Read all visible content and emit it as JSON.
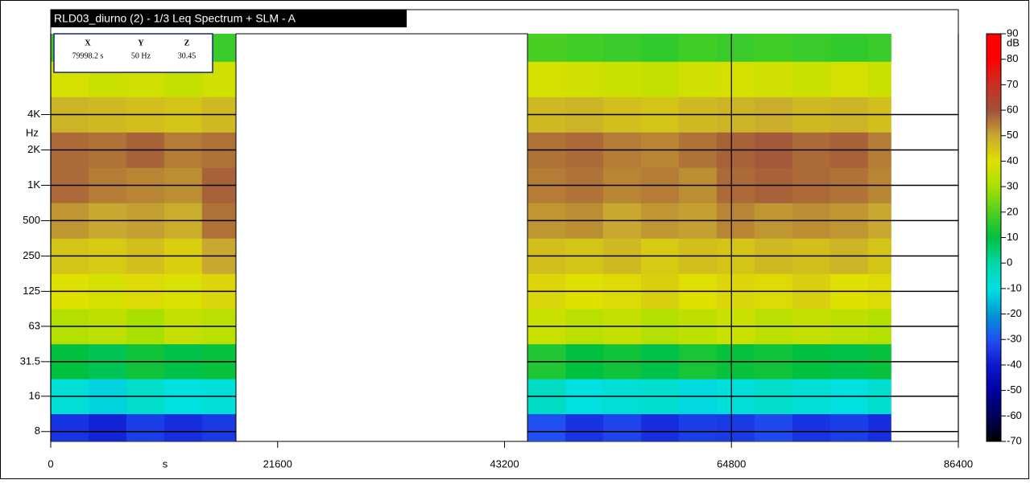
{
  "window_title": "RLD03_diurno (2) - 1/3 Leq Spectrum + SLM - A",
  "readout": {
    "headers": [
      "X",
      "Y",
      "Z"
    ],
    "values": [
      "79998.2 s",
      "50 Hz",
      "30.45"
    ]
  },
  "chart_data": {
    "type": "heatmap",
    "x_label": "s",
    "y_label": "Hz",
    "colorbar_label": "dB",
    "xlim": [
      0,
      86400
    ],
    "xticks": [
      0,
      21600,
      43200,
      64800,
      86400
    ],
    "ylim": [
      6.6,
      19500
    ],
    "log_y": true,
    "yticks": [
      8,
      16,
      31.5,
      63,
      125,
      250,
      500,
      {
        "value": 1000,
        "label": "1K"
      },
      {
        "value": 2000,
        "label": "2K"
      },
      {
        "value": 4000,
        "label": "4K"
      }
    ],
    "x_bins": [
      0,
      3600,
      7200,
      10800,
      14400,
      17600,
      45400,
      49000,
      52600,
      56200,
      59800,
      63400,
      67000,
      70600,
      74200,
      77800,
      80000
    ],
    "bands": [
      8,
      16,
      31.5,
      63,
      125,
      250,
      500,
      1000,
      2000,
      4000,
      8000,
      16000
    ],
    "z": [
      [
        -35,
        -38,
        -33,
        -36,
        -34,
        null,
        -30,
        -35,
        -32,
        -36,
        -33,
        -34,
        -31,
        -35,
        -33,
        -36
      ],
      [
        -8,
        -12,
        -6,
        -10,
        -9,
        null,
        -5,
        -10,
        -8,
        -7,
        -11,
        -9,
        -6,
        -8,
        -10,
        -7
      ],
      [
        10,
        8,
        12,
        9,
        11,
        null,
        14,
        10,
        12,
        9,
        13,
        11,
        12,
        10,
        9,
        11
      ],
      [
        32,
        34,
        30,
        35,
        33,
        null,
        36,
        33,
        35,
        32,
        34,
        36,
        33,
        35,
        34,
        32
      ],
      [
        40,
        38,
        41,
        39,
        42,
        null,
        42,
        40,
        41,
        43,
        40,
        42,
        41,
        43,
        40,
        41
      ],
      [
        45,
        44,
        46,
        43,
        50,
        null,
        46,
        45,
        47,
        44,
        46,
        45,
        47,
        46,
        48,
        45
      ],
      [
        52,
        50,
        51,
        49,
        56,
        null,
        52,
        53,
        50,
        52,
        51,
        54,
        52,
        53,
        52,
        50
      ],
      [
        57,
        55,
        54,
        53,
        58,
        null,
        55,
        56,
        54,
        55,
        53,
        57,
        58,
        57,
        56,
        54
      ],
      [
        57,
        56,
        58,
        55,
        56,
        null,
        56,
        57,
        55,
        54,
        56,
        58,
        59,
        57,
        58,
        55
      ],
      [
        48,
        47,
        46,
        45,
        47,
        null,
        47,
        48,
        46,
        45,
        47,
        48,
        49,
        47,
        48,
        46
      ],
      [
        38,
        36,
        37,
        35,
        37,
        null,
        38,
        37,
        36,
        35,
        37,
        38,
        37,
        36,
        38,
        36
      ],
      [
        18,
        16,
        17,
        15,
        17,
        null,
        19,
        18,
        17,
        16,
        18,
        17,
        18,
        17,
        16,
        17
      ]
    ],
    "clim": [
      -70,
      90
    ],
    "cticks": [
      90,
      80,
      70,
      60,
      50,
      40,
      30,
      20,
      10,
      0,
      -10,
      -20,
      -30,
      -40,
      -50,
      -60,
      -70
    ],
    "colorscale": [
      [
        -70,
        "#000000"
      ],
      [
        -60,
        "#00005a"
      ],
      [
        -50,
        "#0000a0"
      ],
      [
        -40,
        "#1018d0"
      ],
      [
        -30,
        "#2050f0"
      ],
      [
        -20,
        "#0098d8"
      ],
      [
        -10,
        "#00e0e0"
      ],
      [
        0,
        "#00d8a8"
      ],
      [
        10,
        "#00c040"
      ],
      [
        20,
        "#50d020"
      ],
      [
        30,
        "#a8e000"
      ],
      [
        40,
        "#e0e000"
      ],
      [
        50,
        "#c8a830"
      ],
      [
        60,
        "#a0503c"
      ],
      [
        70,
        "#c83020"
      ],
      [
        80,
        "#ff0000"
      ],
      [
        90,
        "#ff0000"
      ]
    ]
  }
}
